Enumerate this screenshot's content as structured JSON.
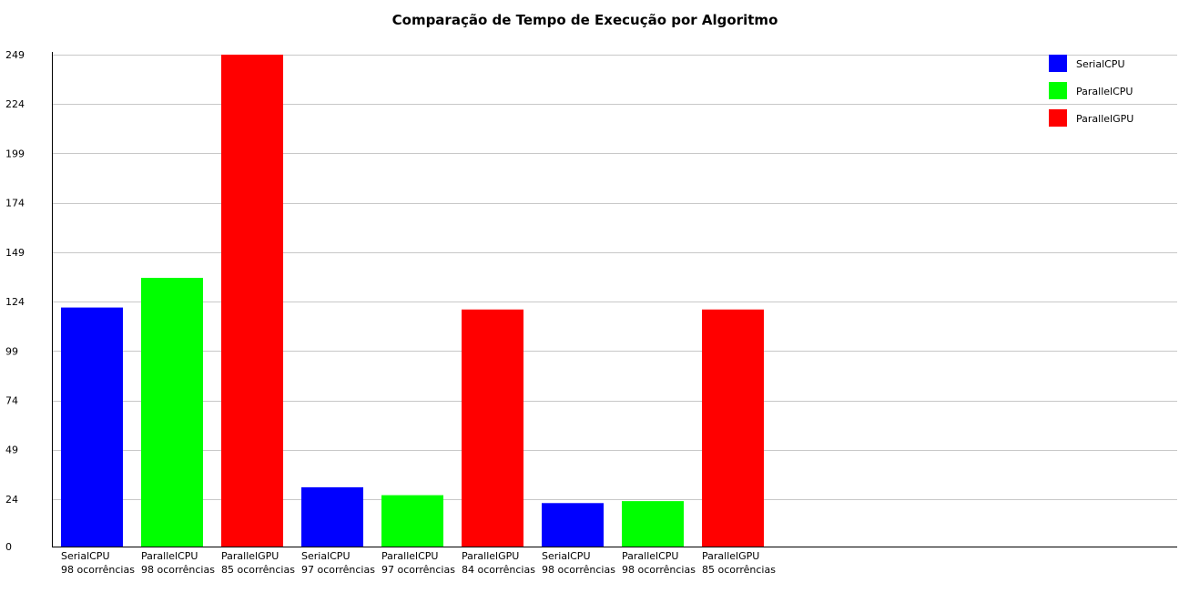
{
  "chart_data": {
    "type": "bar",
    "title": "Comparação de Tempo de Execução por Algoritmo",
    "xlabel": "",
    "ylabel": "",
    "ylim": [
      0,
      249
    ],
    "yticks": [
      0,
      24,
      49,
      74,
      99,
      124,
      149,
      174,
      199,
      224,
      249
    ],
    "grid": true,
    "legend_position": "top-right",
    "legend": [
      {
        "name": "SerialCPU",
        "color": "#0000ff"
      },
      {
        "name": "ParallelCPU",
        "color": "#00ff00"
      },
      {
        "name": "ParallelGPU",
        "color": "#ff0000"
      }
    ],
    "bars": [
      {
        "label": "SerialCPU",
        "sublabel": "98 ocorrências",
        "value": 121,
        "color": "#0000ff"
      },
      {
        "label": "ParallelCPU",
        "sublabel": "98 ocorrências",
        "value": 136,
        "color": "#00ff00"
      },
      {
        "label": "ParallelGPU",
        "sublabel": "85 ocorrências",
        "value": 249,
        "color": "#ff0000"
      },
      {
        "label": "SerialCPU",
        "sublabel": "97 ocorrências",
        "value": 30,
        "color": "#0000ff"
      },
      {
        "label": "ParallelCPU",
        "sublabel": "97 ocorrências",
        "value": 26,
        "color": "#00ff00"
      },
      {
        "label": "ParallelGPU",
        "sublabel": "84 ocorrências",
        "value": 120,
        "color": "#ff0000"
      },
      {
        "label": "SerialCPU",
        "sublabel": "98 ocorrências",
        "value": 22,
        "color": "#0000ff"
      },
      {
        "label": "ParallelCPU",
        "sublabel": "98 ocorrências",
        "value": 23,
        "color": "#00ff00"
      },
      {
        "label": "ParallelGPU",
        "sublabel": "85 ocorrências",
        "value": 120,
        "color": "#ff0000"
      }
    ]
  }
}
